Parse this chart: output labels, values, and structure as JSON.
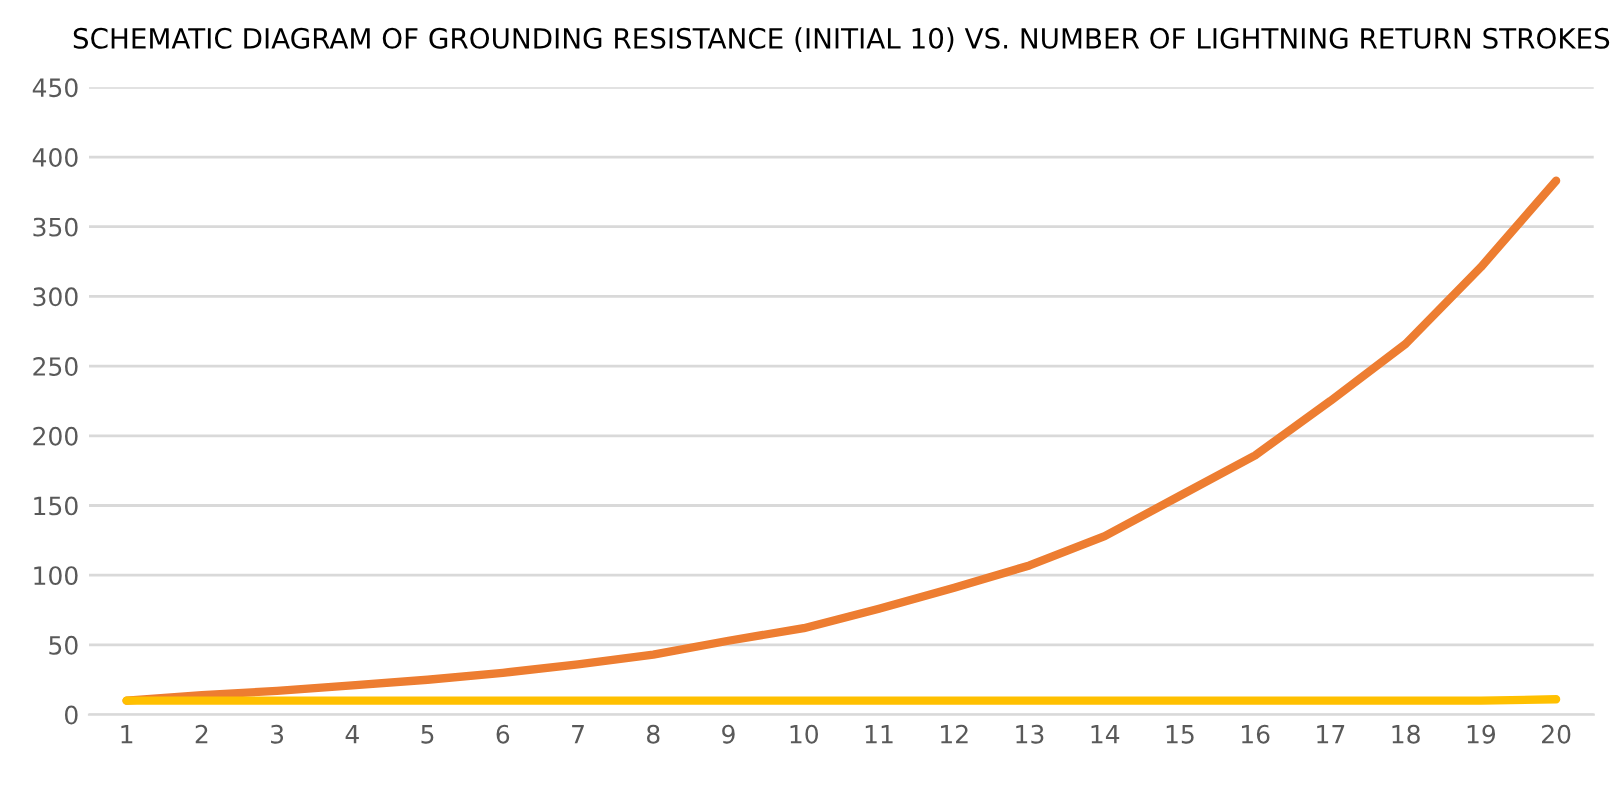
{
  "chart_data": {
    "type": "line",
    "title": "SCHEMATIC DIAGRAM OF GROUNDING RESISTANCE (INITIAL 10) VS. NUMBER OF LIGHTNING RETURN STROKES",
    "categories": [
      "1",
      "2",
      "3",
      "4",
      "5",
      "6",
      "7",
      "8",
      "9",
      "10",
      "11",
      "12",
      "13",
      "14",
      "15",
      "16",
      "17",
      "18",
      "19",
      "20"
    ],
    "series": [
      {
        "color": "#ed7d31",
        "values": [
          10,
          14,
          17,
          21,
          25,
          30,
          36,
          43,
          53,
          62,
          76,
          91,
          107,
          128,
          157,
          186,
          225,
          266,
          321,
          383
        ]
      },
      {
        "color": "#ffc000",
        "values": [
          10,
          10,
          10,
          10,
          10,
          10,
          10,
          10,
          10,
          10,
          10,
          10,
          10,
          10,
          10,
          10,
          10,
          10,
          10,
          11
        ]
      }
    ],
    "ylim": [
      0,
      450
    ],
    "yticks": [
      0,
      50,
      100,
      150,
      200,
      250,
      300,
      350,
      400,
      450
    ],
    "grid": "y",
    "legend": false,
    "marker": "none",
    "line_style": "solid"
  }
}
